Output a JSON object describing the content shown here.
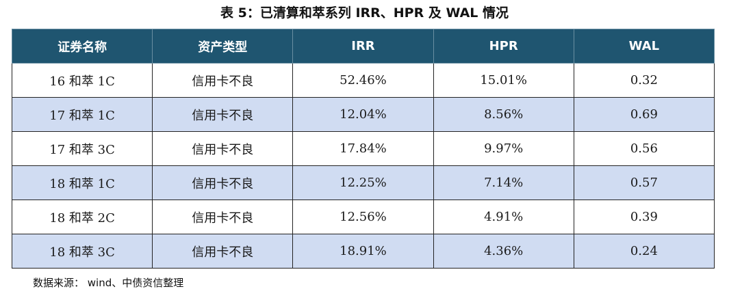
{
  "title": "表 5：已清算和萃系列 IRR、HPR 及 WAL 情况",
  "table": {
    "headers": [
      "证券名称",
      "资产类型",
      "IRR",
      "HPR",
      "WAL"
    ],
    "rows": [
      [
        "16 和萃 1C",
        "信用卡不良",
        "52.46%",
        "15.01%",
        "0.32"
      ],
      [
        "17 和萃 1C",
        "信用卡不良",
        "12.04%",
        "8.56%",
        "0.69"
      ],
      [
        "17 和萃 3C",
        "信用卡不良",
        "17.84%",
        "9.97%",
        "0.56"
      ],
      [
        "18 和萃 1C",
        "信用卡不良",
        "12.25%",
        "7.14%",
        "0.57"
      ],
      [
        "18 和萃 2C",
        "信用卡不良",
        "12.56%",
        "4.91%",
        "0.39"
      ],
      [
        "18 和萃 3C",
        "信用卡不良",
        "18.91%",
        "4.36%",
        "0.24"
      ]
    ]
  },
  "source": "数据来源： wind、中债资信整理",
  "colors": {
    "header_background": "#1f5570",
    "header_text": "#ffffff",
    "alternate_row": "#d0dcf2"
  }
}
